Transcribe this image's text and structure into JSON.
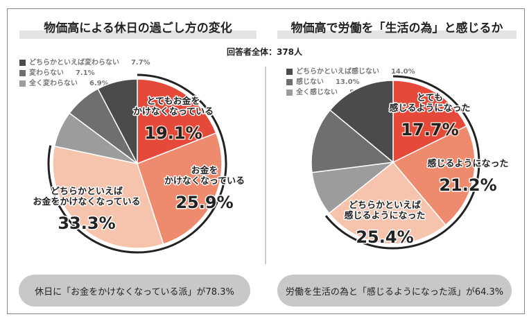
{
  "respondents": "回答者全体：378人",
  "chart_data": [
    {
      "type": "pie",
      "title": "物価高による休日の過ごし方の変化",
      "slices": [
        {
          "label": "とてもお金をかけなくなっている",
          "value": 19.1,
          "color": "#e4493a"
        },
        {
          "label": "お金をかけなくなっている",
          "value": 25.9,
          "color": "#ee8a6e"
        },
        {
          "label": "どちらかといえばお金をかけなくなっている",
          "value": 33.3,
          "color": "#f6c4ad"
        },
        {
          "label": "全く変わらない",
          "value": 6.9,
          "color": "#9c9c9c"
        },
        {
          "label": "変わらない",
          "value": 7.1,
          "color": "#6f6f6f"
        },
        {
          "label": "どちらかといえば変わらない",
          "value": 7.7,
          "color": "#4b4b4b"
        }
      ],
      "inner_labels": [
        {
          "lines": [
            "とてもお金を",
            "かけなくなっている"
          ],
          "pct": "19.1%"
        },
        {
          "lines": [
            "お金を",
            "かけなくなっている"
          ],
          "pct": "25.9%"
        },
        {
          "lines": [
            "どちらかといえば",
            "お金をかけなくなっている"
          ],
          "pct": "33.3%"
        }
      ],
      "legend": [
        {
          "label": "どちらかといえば変わらない",
          "pct": "7.7%",
          "color": "#4b4b4b"
        },
        {
          "label": "変わらない",
          "pct": "7.1%",
          "color": "#6f6f6f"
        },
        {
          "label": "全く変わらない",
          "pct": "6.9%",
          "color": "#9c9c9c"
        }
      ],
      "summary": "休日に「お金をかけなくなっている派」が78.3%"
    },
    {
      "type": "pie",
      "title": "物価高で労働を「生活の為」と感じるか",
      "slices": [
        {
          "label": "とても感じるようになった",
          "value": 17.7,
          "color": "#e4493a"
        },
        {
          "label": "感じるようになった",
          "value": 21.2,
          "color": "#ee8a6e"
        },
        {
          "label": "どちらかといえば感じるようになった",
          "value": 25.4,
          "color": "#f6c4ad"
        },
        {
          "label": "全く感じない",
          "value": 8.7,
          "color": "#9c9c9c"
        },
        {
          "label": "感じない",
          "value": 13.0,
          "color": "#6f6f6f"
        },
        {
          "label": "どちらかといえば感じない",
          "value": 14.0,
          "color": "#4b4b4b"
        }
      ],
      "inner_labels": [
        {
          "lines": [
            "とても",
            "感じるようになった"
          ],
          "pct": "17.7%"
        },
        {
          "lines": [
            "感じるようになった"
          ],
          "pct": "21.2%"
        },
        {
          "lines": [
            "どちらかといえば",
            "感じるようになった"
          ],
          "pct": "25.4%"
        }
      ],
      "legend": [
        {
          "label": "どちらかといえば感じない",
          "pct": "14.0%",
          "color": "#4b4b4b"
        },
        {
          "label": "感じない",
          "pct": "13.0%",
          "color": "#6f6f6f"
        },
        {
          "label": "全く感じない",
          "pct": "8.7%",
          "color": "#9c9c9c"
        }
      ],
      "summary": "労働を生活の為と「感じるようになった派」が64.3%"
    }
  ]
}
